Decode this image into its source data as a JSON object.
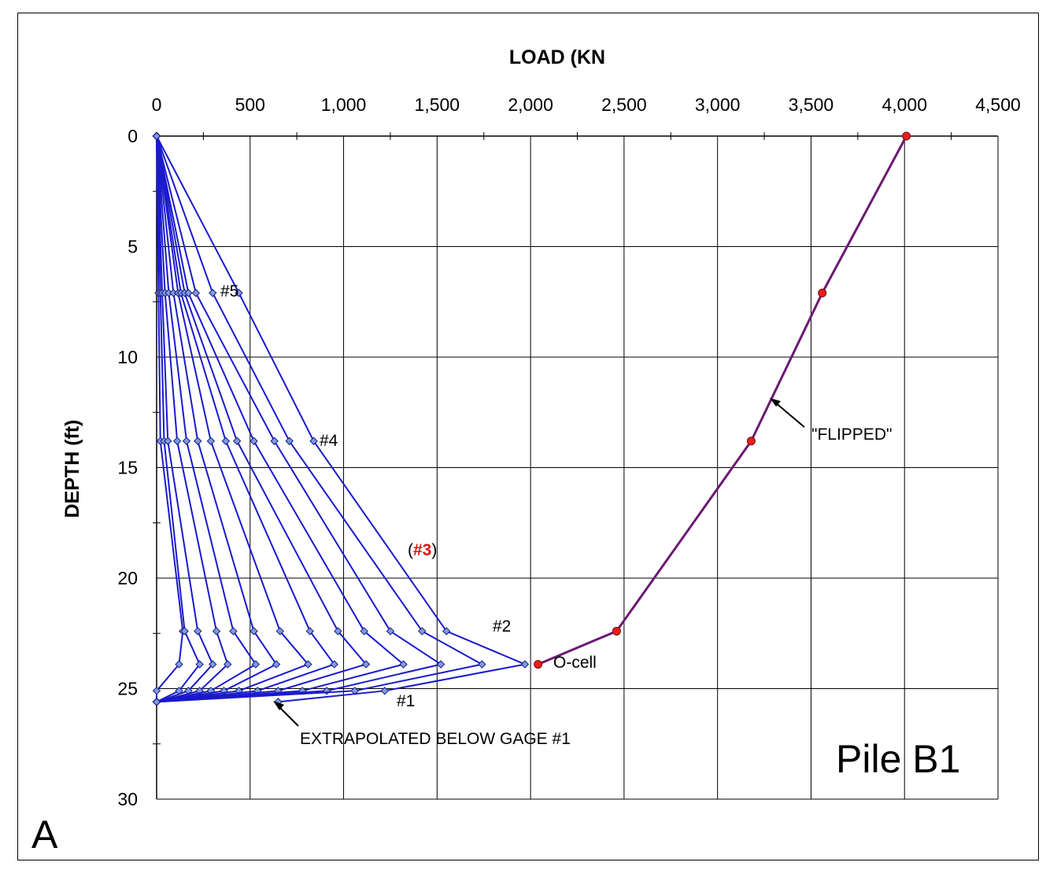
{
  "chart_data": {
    "type": "line",
    "title": "",
    "xlabel": "LOAD  (KN",
    "ylabel": "DEPTH (ft)",
    "xlim": [
      0,
      4500
    ],
    "ylim": [
      0,
      30
    ],
    "y_inverted": true,
    "x_axis_position": "top",
    "x_ticks": [
      "0",
      "500",
      "1,000",
      "1,500",
      "2,000",
      "2,500",
      "3,000",
      "3,500",
      "4,000",
      "4,500"
    ],
    "x_tick_values": [
      0,
      500,
      1000,
      1500,
      2000,
      2500,
      3000,
      3500,
      4000,
      4500
    ],
    "y_ticks": [
      "0",
      "5",
      "10",
      "15",
      "20",
      "25",
      "30"
    ],
    "y_tick_values": [
      0,
      5,
      10,
      15,
      20,
      25,
      30
    ],
    "grid": true,
    "gage_depths": [
      0,
      7.1,
      13.8,
      22.4,
      23.9,
      25.1,
      25.6
    ],
    "series": [
      {
        "color": "#1a1acc",
        "x": [
          0,
          10,
          20,
          140,
          120,
          0,
          0
        ]
      },
      {
        "color": "#1a1acc",
        "x": [
          0,
          20,
          40,
          150,
          230,
          120,
          0
        ]
      },
      {
        "color": "#1a1acc",
        "x": [
          0,
          30,
          60,
          220,
          300,
          170,
          0
        ]
      },
      {
        "color": "#1a1acc",
        "x": [
          0,
          45,
          110,
          320,
          380,
          230,
          0
        ]
      },
      {
        "color": "#1a1acc",
        "x": [
          0,
          65,
          160,
          410,
          530,
          290,
          0
        ]
      },
      {
        "color": "#1a1acc",
        "x": [
          0,
          90,
          220,
          520,
          640,
          360,
          0
        ]
      },
      {
        "color": "#1a1acc",
        "x": [
          0,
          115,
          290,
          660,
          810,
          440,
          0
        ]
      },
      {
        "color": "#1a1acc",
        "x": [
          0,
          130,
          370,
          820,
          950,
          540,
          0
        ]
      },
      {
        "color": "#1a1acc",
        "x": [
          0,
          150,
          430,
          970,
          1120,
          650,
          0
        ]
      },
      {
        "color": "#1a1acc",
        "x": [
          0,
          170,
          520,
          1110,
          1320,
          780,
          0
        ]
      },
      {
        "color": "#1a1acc",
        "x": [
          0,
          210,
          630,
          1250,
          1520,
          910,
          0
        ]
      },
      {
        "color": "#1a1acc",
        "x": [
          0,
          300,
          710,
          1420,
          1740,
          1060,
          0
        ]
      },
      {
        "color": "#1a1acc",
        "x": [
          0,
          440,
          840,
          1550,
          1970,
          1220,
          650
        ]
      },
      {
        "color": "#6b1a73",
        "name": "",
        "x": [
          4010,
          3560,
          3180,
          2460,
          2040
        ],
        "y": [
          0,
          7.1,
          13.8,
          22.4,
          23.9
        ]
      }
    ],
    "annotations": {
      "gage5": "#5",
      "gage4": "#4",
      "gage3_open": "(",
      "gage3": "#3",
      "gage3_close": ")",
      "gage2": "#2",
      "gage1": "#1",
      "ocell": "O-cell",
      "flipped": "\"FLIPPED\"",
      "extrapolated": "EXTRAPOLATED BELOW GAGE #1"
    },
    "pile_label": "Pile B1",
    "panel_letter": "A"
  }
}
